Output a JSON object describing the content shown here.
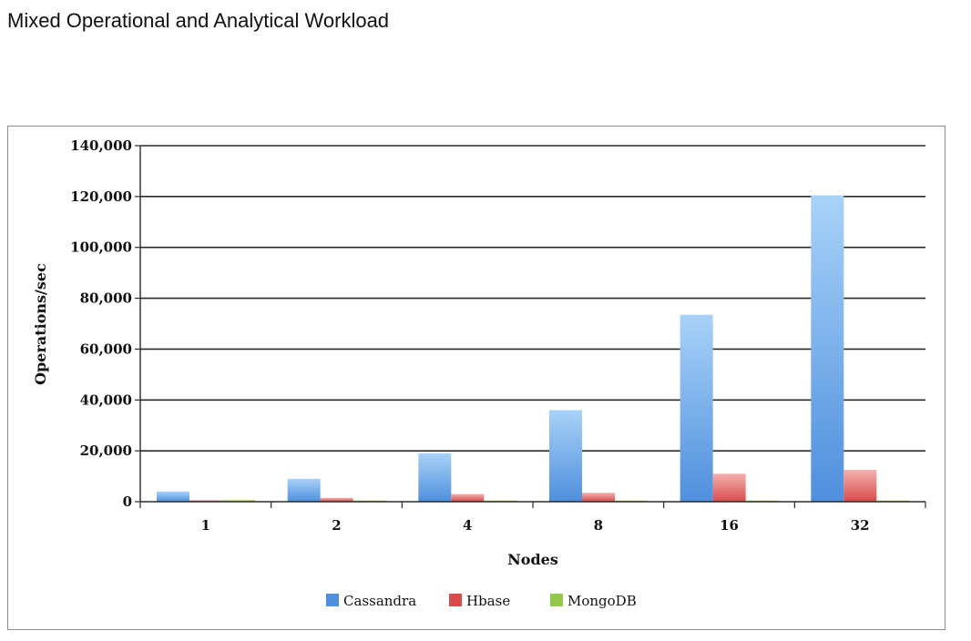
{
  "title": "Mixed Operational and Analytical Workload",
  "chart_data": {
    "type": "bar",
    "xlabel": "Nodes",
    "ylabel": "Operations/sec",
    "categories": [
      "1",
      "2",
      "4",
      "8",
      "16",
      "32"
    ],
    "ylim": [
      0,
      140000
    ],
    "yticks": [
      0,
      20000,
      40000,
      60000,
      80000,
      100000,
      120000,
      140000
    ],
    "ytick_labels": [
      "0",
      "20,000",
      "40,000",
      "60,000",
      "80,000",
      "100,000",
      "120,000",
      "140,000"
    ],
    "grid": true,
    "legend_position": "bottom",
    "series": [
      {
        "name": "Cassandra",
        "values": [
          4000,
          9000,
          19000,
          36000,
          73500,
          120500
        ],
        "color": "#4f8fdd",
        "color_light": "#a8d2f8"
      },
      {
        "name": "Hbase",
        "values": [
          600,
          1500,
          3000,
          3500,
          11000,
          12500
        ],
        "color": "#d84b4b",
        "color_light": "#f4b0b0"
      },
      {
        "name": "MongoDB",
        "values": [
          800,
          300,
          300,
          300,
          400,
          400
        ],
        "color": "#93c84a",
        "color_light": "#d7efa8"
      }
    ]
  }
}
